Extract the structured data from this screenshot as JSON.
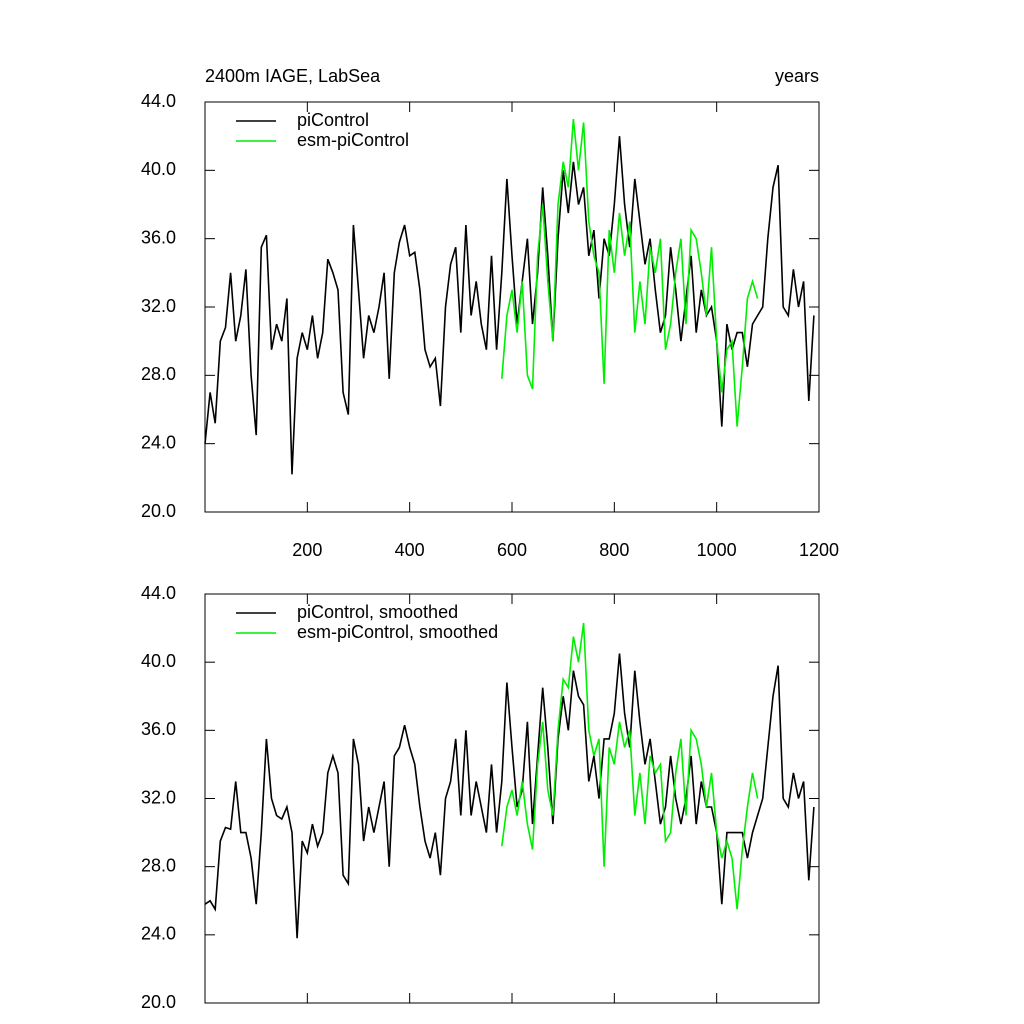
{
  "chart_data": [
    {
      "type": "line",
      "title": "2400m IAGE, LabSea",
      "xlabel": "years",
      "xlim": [
        0,
        1200
      ],
      "xticks": [
        200,
        400,
        600,
        800,
        1000,
        1200
      ],
      "show_xtick_labels": true,
      "ylim": [
        20,
        44
      ],
      "yticks": [
        {
          "value": 20,
          "label": "20.0"
        },
        {
          "value": 24,
          "label": "24.0"
        },
        {
          "value": 28,
          "label": "28.0"
        },
        {
          "value": 32,
          "label": "32.0"
        },
        {
          "value": 36,
          "label": "36.0"
        },
        {
          "value": 40,
          "label": "40.0"
        },
        {
          "value": 44,
          "label": "44.0"
        }
      ],
      "legend": "upper-left",
      "series": [
        {
          "name": "piControl",
          "color": "#000000",
          "x": [
            0,
            10,
            20,
            30,
            40,
            50,
            60,
            70,
            80,
            90,
            100,
            110,
            120,
            130,
            140,
            150,
            160,
            170,
            180,
            190,
            200,
            210,
            220,
            230,
            240,
            250,
            260,
            270,
            280,
            290,
            300,
            310,
            320,
            330,
            340,
            350,
            360,
            370,
            380,
            390,
            400,
            410,
            420,
            430,
            440,
            450,
            460,
            470,
            480,
            490,
            500,
            510,
            520,
            530,
            540,
            550,
            560,
            570,
            580,
            590,
            600,
            610,
            620,
            630,
            640,
            650,
            660,
            670,
            680,
            690,
            700,
            710,
            720,
            730,
            740,
            750,
            760,
            770,
            780,
            790,
            800,
            810,
            820,
            830,
            840,
            850,
            860,
            870,
            880,
            890,
            900,
            910,
            920,
            930,
            940,
            950,
            960,
            970,
            980,
            990,
            1000,
            1010,
            1020,
            1030,
            1040,
            1050,
            1060,
            1070,
            1080,
            1090,
            1100,
            1110,
            1120,
            1130,
            1140,
            1150,
            1160,
            1170,
            1180,
            1190
          ],
          "values": [
            24.0,
            27.0,
            25.2,
            30.0,
            30.8,
            34.0,
            30.0,
            31.5,
            34.2,
            28.0,
            24.5,
            35.5,
            36.2,
            29.5,
            31.0,
            30.0,
            32.5,
            22.2,
            29.0,
            30.5,
            29.5,
            31.5,
            29.0,
            30.5,
            34.8,
            34.0,
            33.0,
            27.0,
            25.7,
            36.8,
            33.0,
            29.0,
            31.5,
            30.5,
            32.0,
            34.0,
            27.8,
            34.0,
            35.8,
            36.8,
            35.0,
            35.2,
            33.0,
            29.5,
            28.5,
            29.0,
            26.2,
            32.0,
            34.5,
            35.5,
            30.5,
            36.8,
            31.5,
            33.5,
            31.0,
            29.5,
            35.0,
            29.5,
            34.0,
            39.5,
            35.0,
            31.0,
            33.5,
            36.0,
            31.0,
            34.0,
            39.0,
            35.0,
            30.0,
            36.0,
            40.0,
            37.5,
            40.5,
            38.0,
            39.0,
            35.0,
            36.5,
            32.5,
            36.0,
            35.0,
            38.0,
            42.0,
            38.0,
            35.5,
            39.5,
            37.0,
            34.5,
            36.0,
            33.0,
            30.5,
            31.5,
            35.5,
            33.0,
            30.0,
            32.5,
            35.0,
            30.5,
            33.0,
            31.5,
            32.0,
            30.0,
            25.0,
            31.0,
            29.5,
            30.5,
            30.5,
            28.5,
            31.0,
            31.5,
            32.0,
            36.0,
            39.0,
            40.3,
            32.0,
            31.5,
            34.2,
            32.0,
            33.5,
            26.5,
            31.5
          ]
        },
        {
          "name": "esm-piControl",
          "color": "#00ee00",
          "x": [
            580,
            590,
            600,
            610,
            620,
            630,
            640,
            650,
            660,
            670,
            680,
            690,
            700,
            710,
            720,
            730,
            740,
            750,
            760,
            770,
            780,
            790,
            800,
            810,
            820,
            830,
            840,
            850,
            860,
            870,
            880,
            890,
            900,
            910,
            920,
            930,
            940,
            950,
            960,
            970,
            980,
            990,
            1000,
            1010,
            1020,
            1030,
            1040,
            1050,
            1060,
            1070,
            1080
          ],
          "values": [
            27.8,
            31.5,
            33.0,
            30.5,
            33.5,
            28.0,
            27.2,
            35.0,
            38.0,
            33.5,
            30.0,
            38.0,
            40.5,
            39.0,
            43.0,
            40.0,
            42.8,
            37.0,
            35.0,
            34.0,
            27.5,
            36.5,
            34.0,
            37.5,
            35.0,
            37.0,
            30.5,
            33.5,
            31.0,
            35.5,
            34.0,
            36.0,
            29.5,
            31.0,
            34.0,
            36.0,
            31.0,
            36.5,
            36.0,
            34.0,
            31.5,
            35.5,
            30.0,
            27.0,
            29.5,
            30.0,
            25.0,
            28.5,
            32.5,
            33.5,
            32.5
          ]
        }
      ]
    },
    {
      "type": "line",
      "xlim": [
        0,
        1200
      ],
      "xticks": [
        200,
        400,
        600,
        800,
        1000,
        1200
      ],
      "show_xtick_labels": false,
      "ylim": [
        20,
        44
      ],
      "yticks": [
        {
          "value": 20,
          "label": "20.0"
        },
        {
          "value": 24,
          "label": "24.0"
        },
        {
          "value": 28,
          "label": "28.0"
        },
        {
          "value": 32,
          "label": "32.0"
        },
        {
          "value": 36,
          "label": "36.0"
        },
        {
          "value": 40,
          "label": "40.0"
        },
        {
          "value": 44,
          "label": "44.0"
        }
      ],
      "legend": "upper-left",
      "series": [
        {
          "name": "piControl, smoothed",
          "color": "#000000",
          "x": [
            0,
            10,
            20,
            30,
            40,
            50,
            60,
            70,
            80,
            90,
            100,
            110,
            120,
            130,
            140,
            150,
            160,
            170,
            180,
            190,
            200,
            210,
            220,
            230,
            240,
            250,
            260,
            270,
            280,
            290,
            300,
            310,
            320,
            330,
            340,
            350,
            360,
            370,
            380,
            390,
            400,
            410,
            420,
            430,
            440,
            450,
            460,
            470,
            480,
            490,
            500,
            510,
            520,
            530,
            540,
            550,
            560,
            570,
            580,
            590,
            600,
            610,
            620,
            630,
            640,
            650,
            660,
            670,
            680,
            690,
            700,
            710,
            720,
            730,
            740,
            750,
            760,
            770,
            780,
            790,
            800,
            810,
            820,
            830,
            840,
            850,
            860,
            870,
            880,
            890,
            900,
            910,
            920,
            930,
            940,
            950,
            960,
            970,
            980,
            990,
            1000,
            1010,
            1020,
            1030,
            1040,
            1050,
            1060,
            1070,
            1080,
            1090,
            1100,
            1110,
            1120,
            1130,
            1140,
            1150,
            1160,
            1170,
            1180,
            1190
          ],
          "values": [
            25.8,
            26.0,
            25.5,
            29.5,
            30.3,
            30.2,
            33.0,
            30.0,
            30.0,
            28.5,
            25.8,
            30.0,
            35.5,
            32.0,
            31.0,
            30.8,
            31.5,
            30.0,
            23.8,
            29.5,
            28.8,
            30.5,
            29.2,
            30.0,
            33.5,
            34.5,
            33.5,
            27.5,
            27.0,
            35.5,
            34.0,
            29.5,
            31.5,
            30.0,
            31.5,
            33.0,
            28.0,
            34.5,
            35.0,
            36.3,
            35.0,
            34.0,
            31.5,
            29.5,
            28.5,
            30.0,
            27.5,
            32.0,
            33.0,
            35.5,
            31.0,
            36.0,
            31.0,
            33.0,
            31.5,
            30.0,
            34.0,
            30.0,
            33.0,
            38.8,
            35.0,
            31.5,
            32.5,
            36.5,
            30.5,
            34.5,
            38.5,
            35.0,
            30.5,
            35.5,
            38.0,
            36.0,
            39.5,
            38.0,
            37.5,
            33.0,
            34.5,
            32.0,
            35.5,
            35.5,
            37.0,
            40.5,
            37.0,
            35.0,
            39.5,
            36.5,
            34.0,
            35.5,
            33.0,
            30.5,
            31.5,
            34.5,
            32.0,
            30.5,
            32.0,
            34.5,
            30.5,
            33.0,
            31.5,
            31.5,
            30.0,
            25.8,
            30.0,
            30.0,
            30.0,
            30.0,
            28.5,
            30.0,
            31.0,
            32.0,
            35.0,
            38.0,
            39.8,
            32.0,
            31.5,
            33.5,
            32.0,
            33.0,
            27.2,
            31.5
          ]
        },
        {
          "name": "esm-piControl, smoothed",
          "color": "#00ee00",
          "x": [
            580,
            590,
            600,
            610,
            620,
            630,
            640,
            650,
            660,
            670,
            680,
            690,
            700,
            710,
            720,
            730,
            740,
            750,
            760,
            770,
            780,
            790,
            800,
            810,
            820,
            830,
            840,
            850,
            860,
            870,
            880,
            890,
            900,
            910,
            920,
            930,
            940,
            950,
            960,
            970,
            980,
            990,
            1000,
            1010,
            1020,
            1030,
            1040,
            1050,
            1060,
            1070,
            1080
          ],
          "values": [
            29.2,
            31.5,
            32.5,
            31.0,
            33.0,
            30.5,
            29.0,
            34.0,
            36.5,
            32.5,
            31.0,
            36.0,
            39.0,
            38.5,
            41.5,
            40.0,
            42.3,
            36.0,
            34.5,
            35.5,
            28.0,
            35.0,
            34.0,
            36.5,
            35.0,
            36.0,
            31.0,
            33.5,
            30.5,
            34.5,
            33.5,
            34.0,
            29.5,
            30.0,
            33.5,
            35.5,
            31.0,
            36.0,
            35.5,
            34.0,
            31.5,
            33.5,
            30.0,
            28.5,
            29.5,
            28.5,
            25.5,
            29.0,
            31.5,
            33.5,
            32.0
          ]
        }
      ]
    }
  ]
}
